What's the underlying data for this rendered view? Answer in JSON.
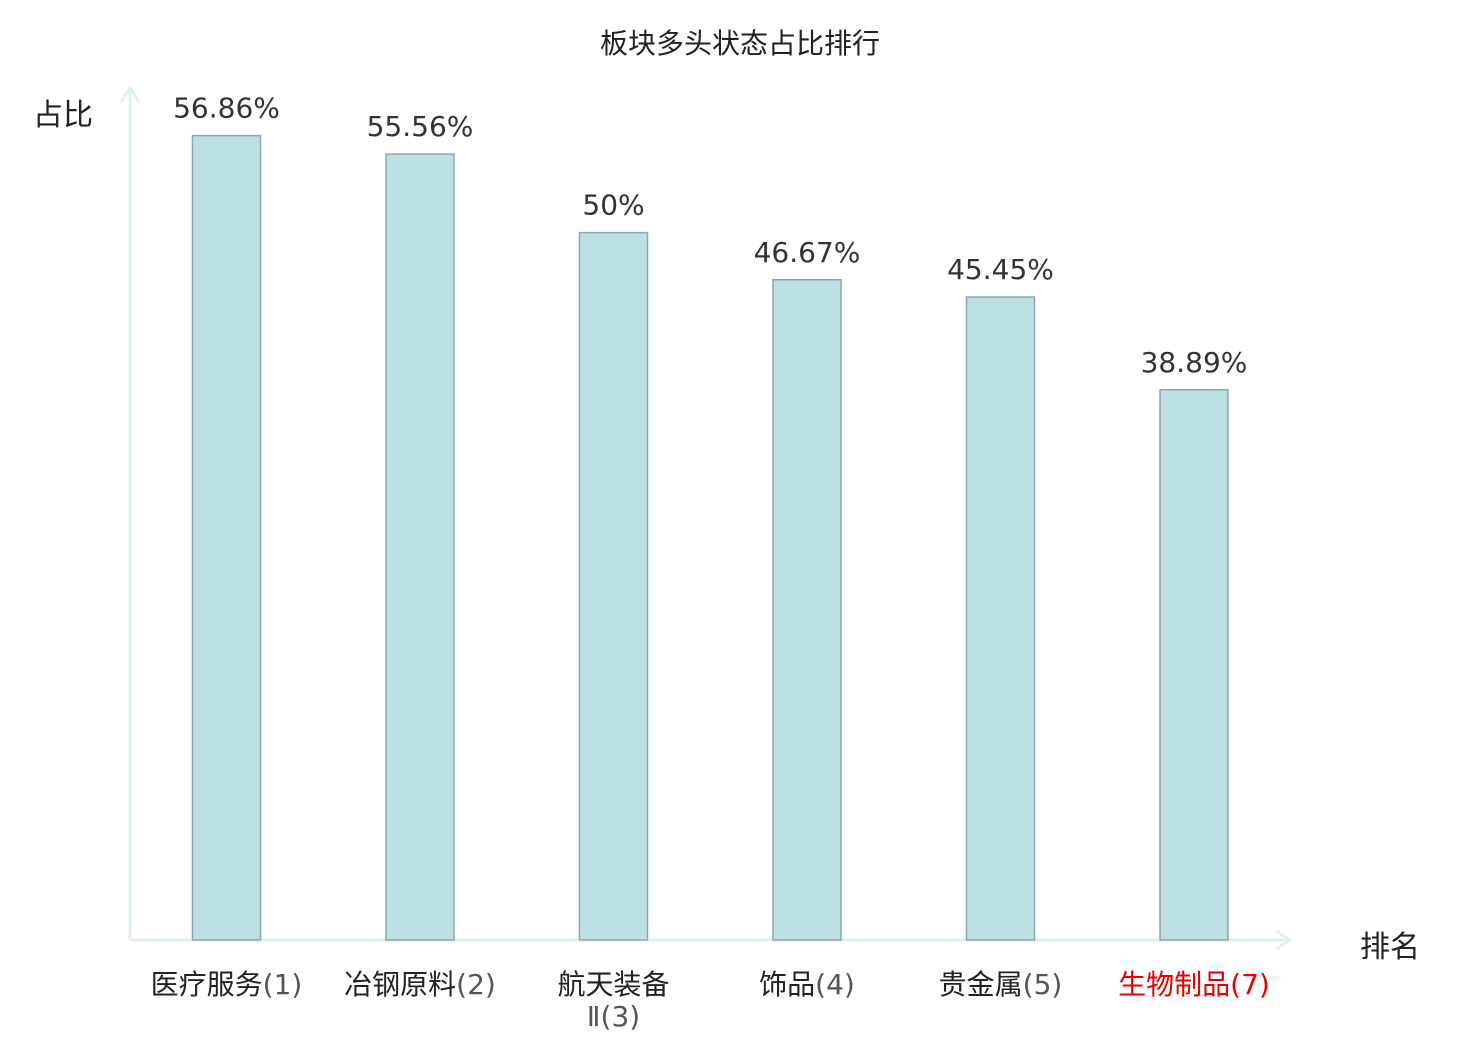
{
  "chart_data": {
    "type": "bar",
    "title": "板块多头状态占比排行",
    "ylabel": "占比",
    "xlabel": "排名",
    "categories": [
      "医疗服务",
      "冶钢原料",
      "航天装备Ⅱ",
      "饰品",
      "贵金属",
      "生物制品"
    ],
    "ranks": [
      "(1)",
      "(2)",
      "(3)",
      "(4)",
      "(5)",
      "(7)"
    ],
    "values": [
      56.86,
      55.56,
      50,
      46.67,
      45.45,
      38.89
    ],
    "value_labels": [
      "56.86%",
      "55.56%",
      "50%",
      "46.67%",
      "45.45%",
      "38.89%"
    ],
    "highlight": [
      false,
      false,
      false,
      false,
      false,
      true
    ],
    "ylim": [
      0,
      63
    ],
    "grid": false,
    "colors": {
      "bar_fill": "#bce0e3",
      "bar_stroke": "#8aa8ab",
      "axis": "#e0f2ef",
      "text": "#222222",
      "value_text": "#333333",
      "rank_text": "#555555",
      "highlight": "#e60000"
    }
  }
}
